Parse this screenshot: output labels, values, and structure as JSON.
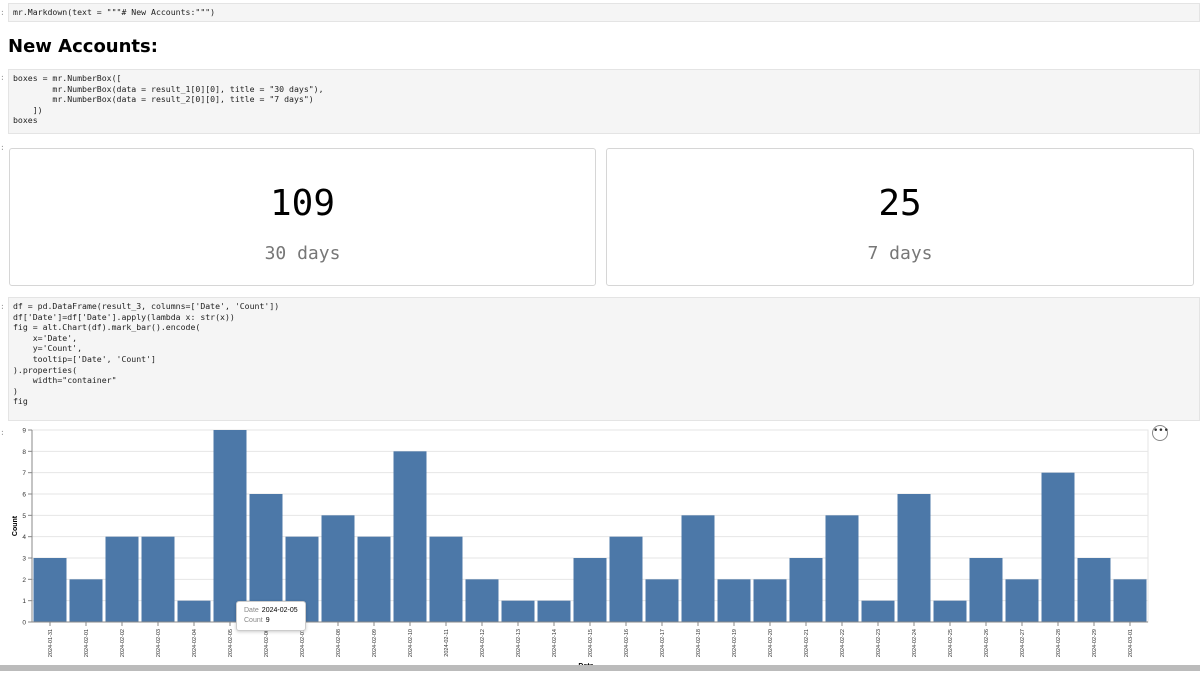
{
  "cells": {
    "prompt_char": ":",
    "cell1_line1": "mr.Markdown(text = \"\"\"# New Accounts:\"\"\")",
    "cell2_l1": "boxes = mr.NumberBox([",
    "cell2_l2": "        mr.NumberBox(data = result_1[0][0], title = \"30 days\"),",
    "cell2_l3": "        mr.NumberBox(data = result_2[0][0], title = \"7 days\")",
    "cell2_l4": "    ])",
    "cell2_l5": "boxes",
    "cell3_l1": "df = pd.DataFrame(result_3, columns=['Date', 'Count'])",
    "cell3_l2": "df['Date']=df['Date'].apply(lambda x: str(x))",
    "cell3_l3": "fig = alt.Chart(df).mark_bar().encode(",
    "cell3_l4": "    x='Date',",
    "cell3_l5": "    y='Count',",
    "cell3_l6": "    tooltip=['Date', 'Count']",
    "cell3_l7": ").properties(",
    "cell3_l8": "    width=\"container\"",
    "cell3_l9": ")",
    "cell3_l10": "fig"
  },
  "markdown": {
    "heading": "New Accounts:"
  },
  "number_boxes": [
    {
      "value": "109",
      "title": "30 days"
    },
    {
      "value": "25",
      "title": "7 days"
    }
  ],
  "chart_actions": {
    "label": "•••"
  },
  "tooltip": {
    "date_key": "Date",
    "date_value": "2024-02-05",
    "count_key": "Count",
    "count_value": "9"
  },
  "colors": {
    "bar": "#4c78a8",
    "grid": "#e6e6e6",
    "axis": "#888888"
  },
  "chart_data": {
    "type": "bar",
    "xlabel": "Date",
    "ylabel": "Count",
    "ylim": [
      0,
      9
    ],
    "yticks": [
      0,
      1,
      2,
      3,
      4,
      5,
      6,
      7,
      8,
      9
    ],
    "grid": true,
    "categories": [
      "2024-01-31",
      "2024-02-01",
      "2024-02-02",
      "2024-02-03",
      "2024-02-04",
      "2024-02-05",
      "2024-02-06",
      "2024-02-07",
      "2024-02-08",
      "2024-02-09",
      "2024-02-10",
      "2024-02-11",
      "2024-02-12",
      "2024-02-13",
      "2024-02-14",
      "2024-02-15",
      "2024-02-16",
      "2024-02-17",
      "2024-02-18",
      "2024-02-19",
      "2024-02-20",
      "2024-02-21",
      "2024-02-22",
      "2024-02-23",
      "2024-02-24",
      "2024-02-25",
      "2024-02-26",
      "2024-02-27",
      "2024-02-28",
      "2024-02-29",
      "2024-03-01"
    ],
    "values": [
      3,
      2,
      4,
      4,
      1,
      9,
      6,
      4,
      5,
      4,
      8,
      4,
      2,
      1,
      1,
      3,
      4,
      2,
      5,
      2,
      2,
      3,
      5,
      1,
      6,
      1,
      3,
      2,
      7,
      3,
      2
    ]
  }
}
